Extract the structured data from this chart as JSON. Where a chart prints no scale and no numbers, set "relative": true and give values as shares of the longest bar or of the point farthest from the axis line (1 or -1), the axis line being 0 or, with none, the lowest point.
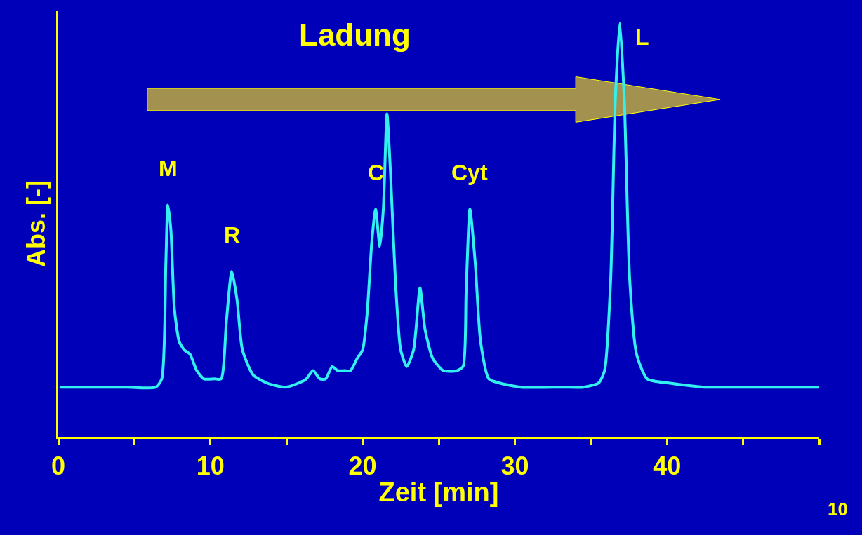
{
  "chart_data": {
    "type": "line",
    "relative": true,
    "xlabel": "Zeit [min]",
    "ylabel": "Abs. [-]",
    "color": "#33f0f0",
    "marker": "none",
    "line_style": "solid",
    "grid": false,
    "x": [
      0.09,
      4.5,
      6.4,
      6.8,
      7.07,
      7.2,
      7.4,
      7.63,
      7.95,
      8.28,
      8.65,
      9.1,
      9.57,
      10.27,
      10.7,
      11.05,
      11.4,
      11.75,
      12.1,
      12.8,
      13.7,
      14.9,
      15.8,
      16.3,
      16.74,
      17.2,
      17.57,
      18.0,
      18.36,
      18.8,
      19.2,
      19.65,
      20.0,
      20.3,
      20.6,
      20.85,
      21.13,
      21.36,
      21.6,
      21.83,
      22.15,
      22.5,
      22.9,
      23.35,
      23.77,
      24.1,
      24.6,
      25.3,
      26.2,
      26.6,
      26.8,
      27.05,
      27.4,
      27.75,
      28.3,
      29.0,
      30.4,
      33.2,
      34.5,
      35.5,
      35.9,
      36.3,
      36.6,
      36.9,
      37.2,
      37.55,
      38.0,
      38.7,
      40.1,
      42.4,
      43.3,
      44.7,
      50.0
    ],
    "values": [
      0.12,
      0.12,
      0.12,
      0.14,
      0.42,
      0.56,
      0.5,
      0.31,
      0.23,
      0.21,
      0.2,
      0.16,
      0.14,
      0.14,
      0.14,
      0.28,
      0.4,
      0.33,
      0.21,
      0.15,
      0.13,
      0.12,
      0.13,
      0.14,
      0.16,
      0.14,
      0.14,
      0.17,
      0.16,
      0.16,
      0.16,
      0.19,
      0.21,
      0.3,
      0.47,
      0.55,
      0.46,
      0.55,
      0.78,
      0.64,
      0.38,
      0.21,
      0.17,
      0.21,
      0.36,
      0.26,
      0.19,
      0.16,
      0.16,
      0.17,
      0.35,
      0.55,
      0.42,
      0.23,
      0.14,
      0.13,
      0.12,
      0.12,
      0.12,
      0.13,
      0.16,
      0.38,
      0.81,
      1,
      0.81,
      0.38,
      0.2,
      0.14,
      0.13,
      0.12,
      0.12,
      0.12,
      0.12
    ],
    "xlim": [
      0,
      50
    ],
    "xticks": [
      0,
      {
        "value": 5,
        "label": null
      },
      10,
      {
        "value": 15,
        "label": null
      },
      20,
      {
        "value": 25,
        "label": null
      },
      30,
      {
        "value": 35,
        "label": null
      },
      40,
      {
        "value": 45,
        "label": null
      },
      {
        "value": 50,
        "label": null
      }
    ],
    "annotations": [
      {
        "text": "M",
        "x": 7.2,
        "y": 0.56
      },
      {
        "text": "R",
        "x": 11.4,
        "y": 0.4
      },
      {
        "text": "C",
        "x": 20.85,
        "y": 0.55
      },
      {
        "text": "Cyt",
        "x": 27.05,
        "y": 0.55
      },
      {
        "text": "L",
        "x": 36.9,
        "y": 1
      },
      "Ladung",
      "10"
    ]
  }
}
